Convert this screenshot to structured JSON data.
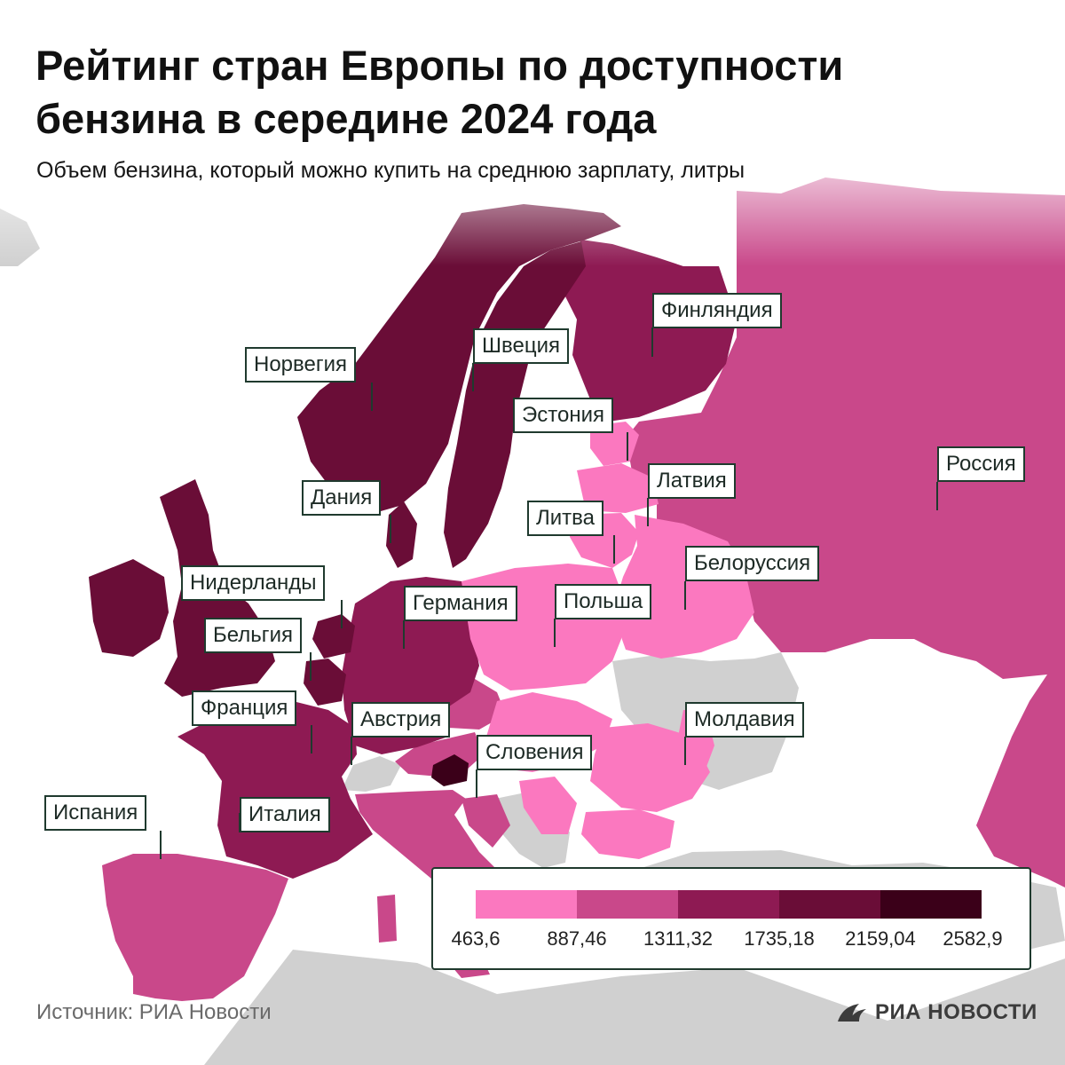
{
  "title": "Рейтинг стран Европы по доступности бензина в середине 2024 года",
  "subtitle": "Объем бензина, который можно купить на среднюю зарплату, литры",
  "source": "Источник: РИА Новости",
  "logo": "РИА НОВОСТИ",
  "colors": {
    "ocean": "#ffffff",
    "no_data": "#d0d0d0",
    "class_1": "#fb78bf",
    "class_2": "#c9488a",
    "class_3": "#8e1a53",
    "class_4": "#6a0d37",
    "class_5": "#3b0019"
  },
  "legend": {
    "ticks": [
      "463,6",
      "887,46",
      "1311,32",
      "1735,18",
      "2159,04",
      "2582,9"
    ]
  },
  "countries": [
    {
      "name": "Финляндия",
      "class": 3
    },
    {
      "name": "Швеция",
      "class": 4
    },
    {
      "name": "Норвегия",
      "class": 4
    },
    {
      "name": "Эстония",
      "class": 1
    },
    {
      "name": "Россия",
      "class": 2
    },
    {
      "name": "Дания",
      "class": 4
    },
    {
      "name": "Латвия",
      "class": 1
    },
    {
      "name": "Литва",
      "class": 1
    },
    {
      "name": "Белоруссия",
      "class": 1
    },
    {
      "name": "Нидерланды",
      "class": 4
    },
    {
      "name": "Германия",
      "class": 3
    },
    {
      "name": "Польша",
      "class": 1
    },
    {
      "name": "Бельгия",
      "class": 4
    },
    {
      "name": "Франция",
      "class": 3
    },
    {
      "name": "Австрия",
      "class": 2
    },
    {
      "name": "Молдавия",
      "class": 1
    },
    {
      "name": "Словения",
      "class": 5
    },
    {
      "name": "Испания",
      "class": 2
    },
    {
      "name": "Италия",
      "class": 2
    }
  ]
}
